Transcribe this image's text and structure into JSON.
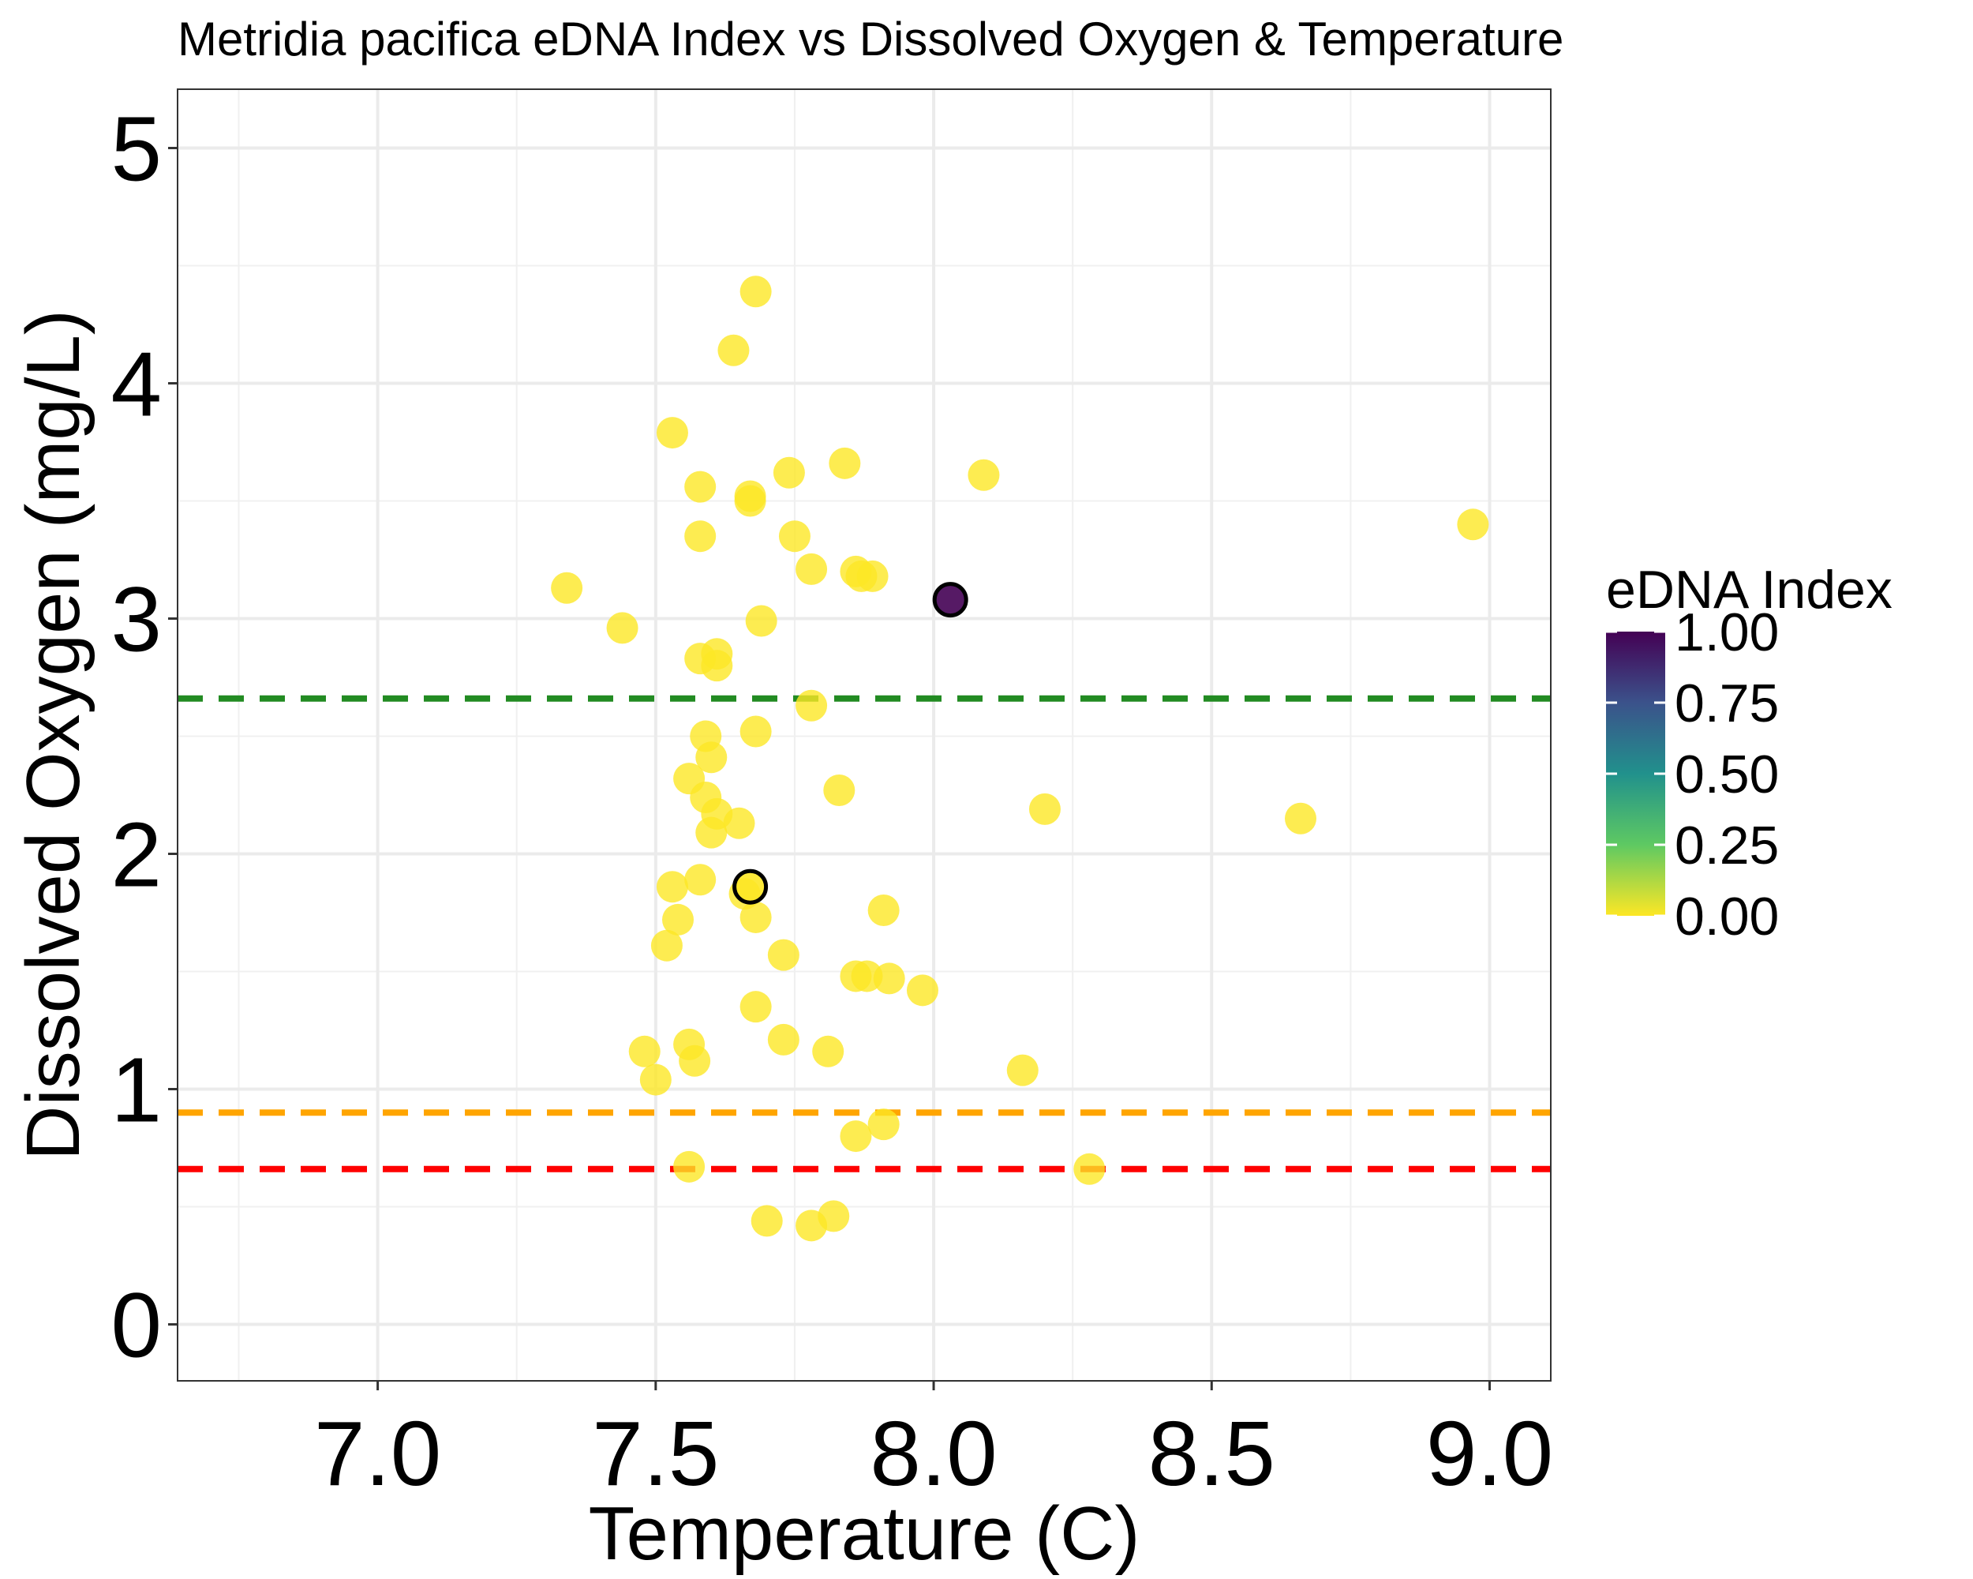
{
  "chart_data": {
    "type": "scatter",
    "title": "Metridia pacifica eDNA Index vs Dissolved Oxygen & Temperature",
    "xlabel": "Temperature (C)",
    "ylabel": "Dissolved Oxygen (mg/L)",
    "xlim": [
      6.64,
      9.11
    ],
    "ylim": [
      -0.24,
      5.25
    ],
    "x_ticks": [
      7.0,
      7.5,
      8.0,
      8.5,
      9.0
    ],
    "x_tick_labels": [
      "7.0",
      "7.5",
      "8.0",
      "8.5",
      "9.0"
    ],
    "y_ticks": [
      0,
      1,
      2,
      3,
      4,
      5
    ],
    "y_tick_labels": [
      "0",
      "1",
      "2",
      "3",
      "4",
      "5"
    ],
    "grid": true,
    "legend": {
      "title": "eDNA Index",
      "placement": "right",
      "ticks": [
        1.0,
        0.75,
        0.5,
        0.25,
        0.0
      ],
      "tick_labels": [
        "1.00",
        "0.75",
        "0.50",
        "0.25",
        "0.00"
      ],
      "colors": [
        "#fde725",
        "#5ec962",
        "#21918c",
        "#3b528b",
        "#440154"
      ]
    },
    "reference_lines": [
      {
        "y": 2.66,
        "color": "#228b22",
        "style": "dashed"
      },
      {
        "y": 0.9,
        "color": "#ffa500",
        "style": "dashed"
      },
      {
        "y": 0.66,
        "color": "#ff0000",
        "style": "dashed"
      }
    ],
    "points": [
      {
        "x": 7.68,
        "y": 4.39,
        "edna": 0
      },
      {
        "x": 7.64,
        "y": 4.14,
        "edna": 0
      },
      {
        "x": 7.53,
        "y": 3.79,
        "edna": 0
      },
      {
        "x": 7.84,
        "y": 3.66,
        "edna": 0
      },
      {
        "x": 7.74,
        "y": 3.62,
        "edna": 0
      },
      {
        "x": 8.09,
        "y": 3.61,
        "edna": 0
      },
      {
        "x": 7.58,
        "y": 3.56,
        "edna": 0
      },
      {
        "x": 7.67,
        "y": 3.52,
        "edna": 0
      },
      {
        "x": 7.67,
        "y": 3.5,
        "edna": 0
      },
      {
        "x": 8.97,
        "y": 3.4,
        "edna": 0
      },
      {
        "x": 7.58,
        "y": 3.35,
        "edna": 0
      },
      {
        "x": 7.75,
        "y": 3.35,
        "edna": 0
      },
      {
        "x": 7.78,
        "y": 3.21,
        "edna": 0
      },
      {
        "x": 7.86,
        "y": 3.2,
        "edna": 0
      },
      {
        "x": 7.89,
        "y": 3.18,
        "edna": 0
      },
      {
        "x": 7.87,
        "y": 3.18,
        "edna": 0
      },
      {
        "x": 7.34,
        "y": 3.13,
        "edna": 0
      },
      {
        "x": 8.03,
        "y": 3.08,
        "edna": 1,
        "outlined": true
      },
      {
        "x": 7.69,
        "y": 2.99,
        "edna": 0
      },
      {
        "x": 7.44,
        "y": 2.96,
        "edna": 0
      },
      {
        "x": 7.61,
        "y": 2.85,
        "edna": 0
      },
      {
        "x": 7.58,
        "y": 2.83,
        "edna": 0
      },
      {
        "x": 7.61,
        "y": 2.8,
        "edna": 0
      },
      {
        "x": 7.78,
        "y": 2.63,
        "edna": 0
      },
      {
        "x": 7.68,
        "y": 2.52,
        "edna": 0
      },
      {
        "x": 7.59,
        "y": 2.5,
        "edna": 0
      },
      {
        "x": 7.6,
        "y": 2.41,
        "edna": 0
      },
      {
        "x": 7.56,
        "y": 2.32,
        "edna": 0
      },
      {
        "x": 7.83,
        "y": 2.27,
        "edna": 0
      },
      {
        "x": 7.59,
        "y": 2.24,
        "edna": 0
      },
      {
        "x": 8.2,
        "y": 2.19,
        "edna": 0
      },
      {
        "x": 7.61,
        "y": 2.17,
        "edna": 0
      },
      {
        "x": 8.66,
        "y": 2.15,
        "edna": 0
      },
      {
        "x": 7.65,
        "y": 2.13,
        "edna": 0
      },
      {
        "x": 7.6,
        "y": 2.09,
        "edna": 0
      },
      {
        "x": 7.58,
        "y": 1.89,
        "edna": 0
      },
      {
        "x": 7.53,
        "y": 1.86,
        "edna": 0
      },
      {
        "x": 7.67,
        "y": 1.86,
        "edna": 0,
        "outlined": true
      },
      {
        "x": 7.66,
        "y": 1.83,
        "edna": 0
      },
      {
        "x": 7.91,
        "y": 1.76,
        "edna": 0
      },
      {
        "x": 7.68,
        "y": 1.73,
        "edna": 0
      },
      {
        "x": 7.54,
        "y": 1.72,
        "edna": 0
      },
      {
        "x": 7.52,
        "y": 1.61,
        "edna": 0
      },
      {
        "x": 7.73,
        "y": 1.57,
        "edna": 0
      },
      {
        "x": 7.86,
        "y": 1.48,
        "edna": 0
      },
      {
        "x": 7.88,
        "y": 1.48,
        "edna": 0
      },
      {
        "x": 7.92,
        "y": 1.47,
        "edna": 0
      },
      {
        "x": 7.98,
        "y": 1.42,
        "edna": 0
      },
      {
        "x": 7.68,
        "y": 1.35,
        "edna": 0
      },
      {
        "x": 7.73,
        "y": 1.21,
        "edna": 0
      },
      {
        "x": 7.56,
        "y": 1.19,
        "edna": 0
      },
      {
        "x": 7.48,
        "y": 1.16,
        "edna": 0
      },
      {
        "x": 7.81,
        "y": 1.16,
        "edna": 0
      },
      {
        "x": 7.57,
        "y": 1.12,
        "edna": 0
      },
      {
        "x": 8.16,
        "y": 1.08,
        "edna": 0
      },
      {
        "x": 7.5,
        "y": 1.04,
        "edna": 0
      },
      {
        "x": 7.91,
        "y": 0.85,
        "edna": 0
      },
      {
        "x": 7.86,
        "y": 0.8,
        "edna": 0
      },
      {
        "x": 7.56,
        "y": 0.67,
        "edna": 0
      },
      {
        "x": 8.28,
        "y": 0.66,
        "edna": 0
      },
      {
        "x": 7.82,
        "y": 0.46,
        "edna": 0
      },
      {
        "x": 7.7,
        "y": 0.44,
        "edna": 0
      },
      {
        "x": 7.78,
        "y": 0.42,
        "edna": 0
      }
    ]
  }
}
